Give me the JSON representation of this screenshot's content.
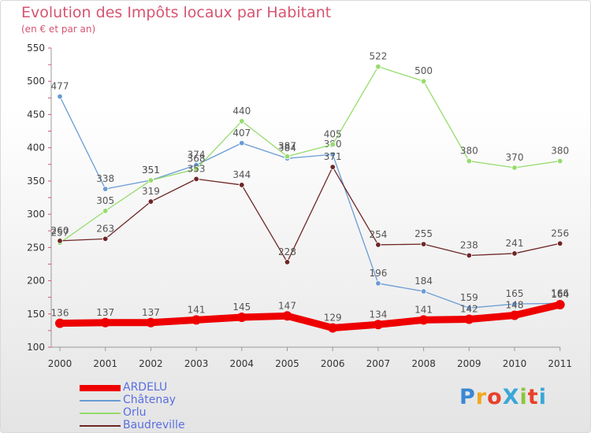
{
  "header": {
    "title": "Evolution des Impôts locaux par Habitant",
    "subtitle": "(en € et par an)"
  },
  "logo": {
    "text": "ProXiti",
    "colors": [
      "#3a88d6",
      "#f2a81c",
      "#e8402a",
      "#3aa7d8",
      "#8bc63a",
      "#e8402a",
      "#3aa7d8"
    ]
  },
  "colors": {
    "ARDELU": "#ee0000",
    "Châtenay": "#6a9bd4",
    "Orlu": "#96dc6c",
    "Baudreville": "#6e2626",
    "axis": "#999999",
    "tick_label": "#333333",
    "data_label": "#555555"
  },
  "chart_data": {
    "type": "line",
    "title": "Evolution des Impôts locaux par Habitant",
    "subtitle": "(en € et par an)",
    "xlabel": "",
    "ylabel": "",
    "ylim": [
      100,
      550
    ],
    "yticks": [
      100,
      150,
      200,
      250,
      300,
      350,
      400,
      450,
      500,
      550
    ],
    "grid": false,
    "legend_position": "bottom-left",
    "categories": [
      "2000",
      "2001",
      "2002",
      "2003",
      "2004",
      "2005",
      "2006",
      "2007",
      "2008",
      "2009",
      "2010",
      "2011"
    ],
    "series": [
      {
        "name": "ARDELU",
        "values": [
          136,
          137,
          137,
          141,
          145,
          147,
          129,
          134,
          141,
          142,
          148,
          164
        ]
      },
      {
        "name": "Châtenay",
        "values": [
          477,
          338,
          351,
          374,
          407,
          384,
          390,
          196,
          184,
          159,
          165,
          166
        ]
      },
      {
        "name": "Orlu",
        "values": [
          257,
          305,
          351,
          368,
          440,
          387,
          405,
          522,
          500,
          380,
          370,
          380
        ]
      },
      {
        "name": "Baudreville",
        "values": [
          260,
          263,
          319,
          353,
          344,
          228,
          371,
          254,
          255,
          238,
          241,
          256
        ]
      }
    ]
  }
}
